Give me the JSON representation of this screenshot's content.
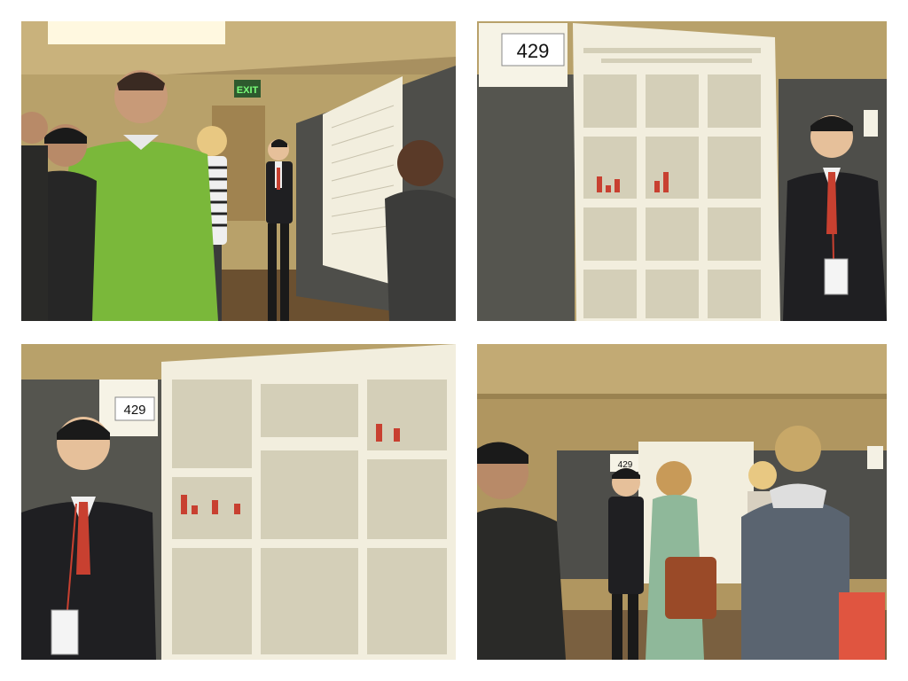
{
  "collage": {
    "layout": "2x2 grid",
    "background": "#ffffff"
  },
  "photos": [
    {
      "id": "photo-1",
      "exit_sign": "EXIT"
    },
    {
      "id": "photo-2",
      "board_number": "429"
    },
    {
      "id": "photo-3",
      "board_number": "429"
    },
    {
      "id": "photo-4",
      "board_number": "429"
    }
  ],
  "colors": {
    "wall": "#b8a16a",
    "ceiling": "#c9b27c",
    "board": "#5a5a55",
    "poster": "#f2eede",
    "green_sweater": "#7ab83a",
    "suit": "#1f1f22",
    "tie": "#c84030",
    "bag": "#9a4a28"
  }
}
